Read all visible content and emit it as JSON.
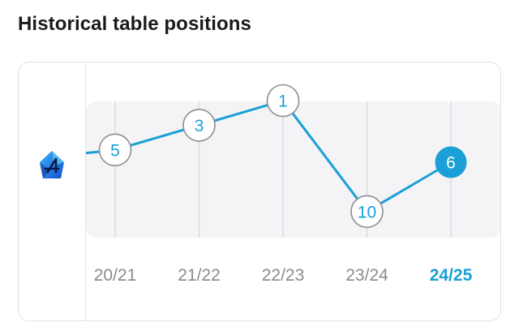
{
  "header": {
    "title": "Historical table positions"
  },
  "league": {
    "icon": "league-logo-icon",
    "color": "#1d7fe0"
  },
  "colors": {
    "accent": "#1a9fd6",
    "band": "#f4f4f6",
    "grid": "#dcdce0",
    "circle_border": "#8e8e93"
  },
  "chart_data": {
    "type": "line",
    "title": "",
    "xlabel": "",
    "ylabel": "",
    "categories": [
      "20/21",
      "21/22",
      "22/23",
      "23/24",
      "24/25"
    ],
    "series": [
      {
        "values": [
          5,
          3,
          1,
          10,
          6
        ]
      }
    ],
    "current_season": "24/25",
    "y_inverted": true,
    "grid": true
  }
}
